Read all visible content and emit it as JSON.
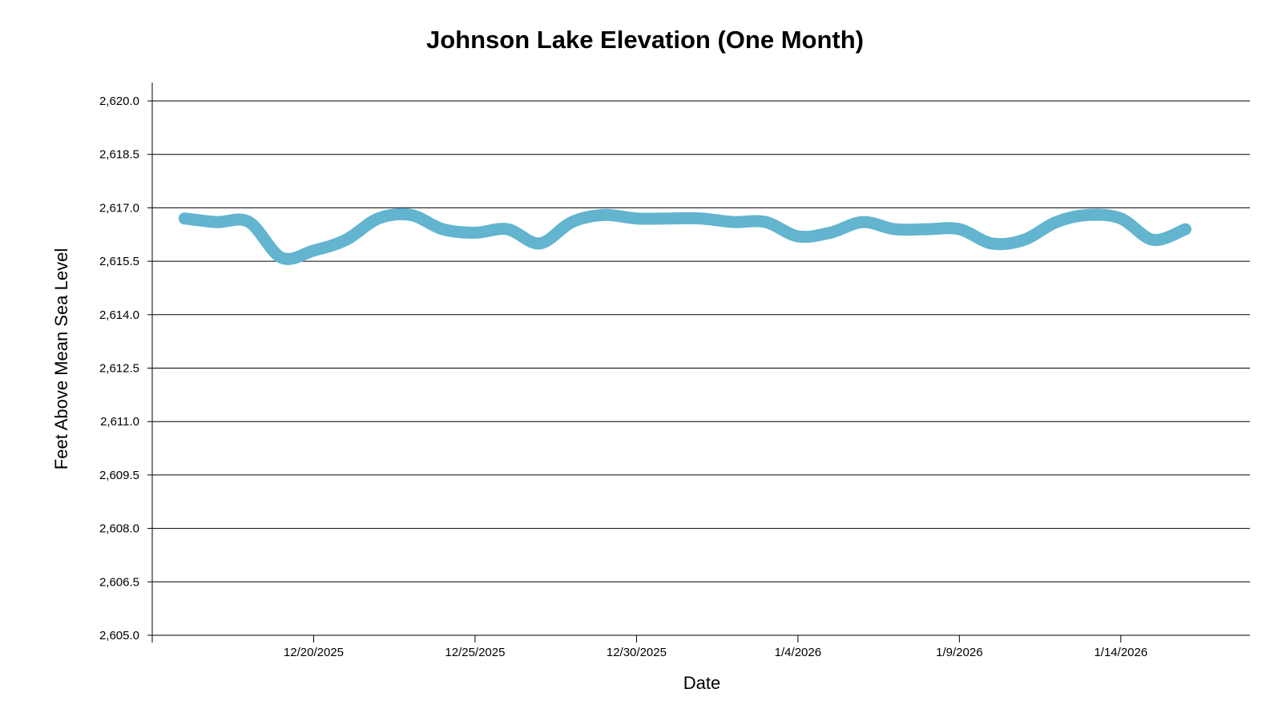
{
  "chart_data": {
    "type": "line",
    "title": "Johnson Lake Elevation (One Month)",
    "xlabel": "Date",
    "ylabel": "Feet Above Mean Sea Level",
    "ylim": [
      2605.0,
      2620.0
    ],
    "y_ticks": [
      "2,605.0",
      "2,606.5",
      "2,608.0",
      "2,609.5",
      "2,611.0",
      "2,612.5",
      "2,614.0",
      "2,615.5",
      "2,617.0",
      "2,618.5",
      "2,620.0"
    ],
    "xlim": [
      "2025-12-15",
      "2026-01-18"
    ],
    "x_ticks": [
      {
        "date": "2025-12-20",
        "label": "12/20/2025"
      },
      {
        "date": "2025-12-25",
        "label": "12/25/2025"
      },
      {
        "date": "2025-12-30",
        "label": "12/30/2025"
      },
      {
        "date": "2026-01-04",
        "label": "1/4/2026"
      },
      {
        "date": "2026-01-09",
        "label": "1/9/2026"
      },
      {
        "date": "2026-01-14",
        "label": "1/14/2026"
      }
    ],
    "grid": true,
    "line_color": "#62b4cf",
    "series": [
      {
        "x": [
          "2025-12-16",
          "2025-12-17",
          "2025-12-18",
          "2025-12-19",
          "2025-12-20",
          "2025-12-21",
          "2025-12-22",
          "2025-12-23",
          "2025-12-24",
          "2025-12-25",
          "2025-12-26",
          "2025-12-27",
          "2025-12-28",
          "2025-12-29",
          "2025-12-30",
          "2025-12-31",
          "2026-01-01",
          "2026-01-02",
          "2026-01-03",
          "2026-01-04",
          "2026-01-05",
          "2026-01-06",
          "2026-01-07",
          "2026-01-08",
          "2026-01-09",
          "2026-01-10",
          "2026-01-11",
          "2026-01-12",
          "2026-01-13",
          "2026-01-14",
          "2026-01-15",
          "2026-01-16"
        ],
        "y": [
          2616.7,
          2616.6,
          2616.6,
          2615.6,
          2615.8,
          2616.1,
          2616.7,
          2616.8,
          2616.4,
          2616.3,
          2616.4,
          2616.0,
          2616.6,
          2616.8,
          2616.7,
          2616.7,
          2616.7,
          2616.6,
          2616.6,
          2616.2,
          2616.3,
          2616.6,
          2616.4,
          2616.4,
          2616.4,
          2616.0,
          2616.1,
          2616.6,
          2616.8,
          2616.7,
          2616.1,
          2616.4
        ]
      }
    ]
  }
}
